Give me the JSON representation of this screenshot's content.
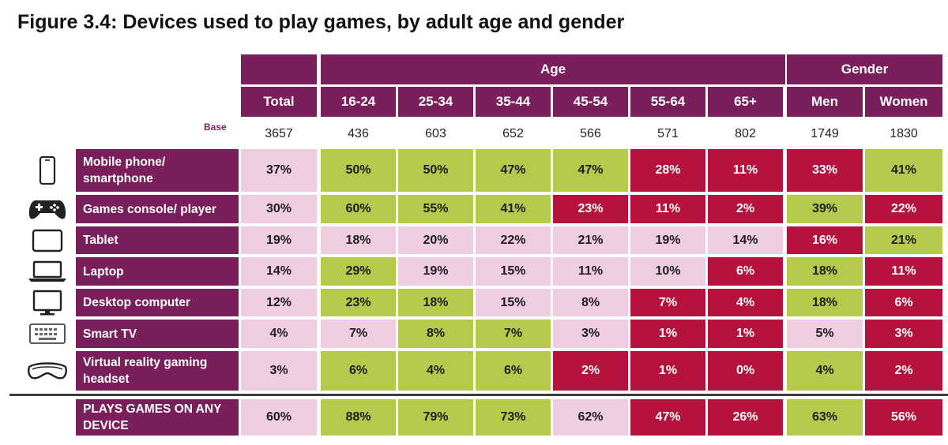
{
  "title": "Figure 3.4: Devices used to play games, by adult age and gender",
  "groups": {
    "age": "Age",
    "gender": "Gender"
  },
  "base_label": "Base",
  "columns": [
    "Total",
    "16-24",
    "25-34",
    "35-44",
    "45-54",
    "55-64",
    "65+",
    "Men",
    "Women"
  ],
  "base": [
    "3657",
    "436",
    "603",
    "652",
    "566",
    "571",
    "802",
    "1749",
    "1830"
  ],
  "colors": {
    "header": "#7a1f5c",
    "green": "#b5c94a",
    "pink": "#efcde0",
    "red": "#b5123e"
  },
  "chart_data": {
    "type": "table",
    "title": "Figure 3.4: Devices used to play games, by adult age and gender",
    "columns": [
      "Total",
      "16-24",
      "25-34",
      "35-44",
      "45-54",
      "55-64",
      "65+",
      "Men",
      "Women"
    ],
    "rows": [
      {
        "label": "Mobile phone/ smartphone",
        "icon": "smartphone-icon",
        "values": [
          "37%",
          "50%",
          "50%",
          "47%",
          "47%",
          "28%",
          "11%",
          "33%",
          "41%"
        ],
        "colors": [
          "pink",
          "green",
          "green",
          "green",
          "green",
          "red",
          "red",
          "red",
          "green"
        ]
      },
      {
        "label": "Games console/ player",
        "icon": "gamepad-icon",
        "values": [
          "30%",
          "60%",
          "55%",
          "41%",
          "23%",
          "11%",
          "2%",
          "39%",
          "22%"
        ],
        "colors": [
          "pink",
          "green",
          "green",
          "green",
          "red",
          "red",
          "red",
          "green",
          "red"
        ]
      },
      {
        "label": "Tablet",
        "icon": "tablet-icon",
        "values": [
          "19%",
          "18%",
          "20%",
          "22%",
          "21%",
          "19%",
          "14%",
          "16%",
          "21%"
        ],
        "colors": [
          "pink",
          "pink",
          "pink",
          "pink",
          "pink",
          "pink",
          "pink",
          "red",
          "green"
        ]
      },
      {
        "label": "Laptop",
        "icon": "laptop-icon",
        "values": [
          "14%",
          "29%",
          "19%",
          "15%",
          "11%",
          "10%",
          "6%",
          "18%",
          "11%"
        ],
        "colors": [
          "pink",
          "green",
          "pink",
          "pink",
          "pink",
          "pink",
          "red",
          "green",
          "red"
        ]
      },
      {
        "label": "Desktop computer",
        "icon": "desktop-monitor-icon",
        "values": [
          "12%",
          "23%",
          "18%",
          "15%",
          "8%",
          "7%",
          "4%",
          "18%",
          "6%"
        ],
        "colors": [
          "pink",
          "green",
          "green",
          "pink",
          "pink",
          "red",
          "red",
          "green",
          "red"
        ]
      },
      {
        "label": "Smart TV",
        "icon": "smart-tv-icon",
        "values": [
          "4%",
          "7%",
          "8%",
          "7%",
          "3%",
          "1%",
          "1%",
          "5%",
          "3%"
        ],
        "colors": [
          "pink",
          "pink",
          "green",
          "green",
          "pink",
          "red",
          "red",
          "pink",
          "red"
        ]
      },
      {
        "label": "Virtual reality gaming headset",
        "icon": "vr-headset-icon",
        "values": [
          "3%",
          "6%",
          "4%",
          "6%",
          "2%",
          "1%",
          "0%",
          "4%",
          "2%"
        ],
        "colors": [
          "pink",
          "green",
          "green",
          "green",
          "red",
          "red",
          "red",
          "green",
          "red"
        ]
      },
      {
        "label": "PLAYS GAMES ON ANY DEVICE",
        "icon": "",
        "values": [
          "60%",
          "88%",
          "79%",
          "73%",
          "62%",
          "47%",
          "26%",
          "63%",
          "56%"
        ],
        "colors": [
          "pink",
          "green",
          "green",
          "green",
          "pink",
          "red",
          "red",
          "green",
          "red"
        ]
      }
    ]
  }
}
